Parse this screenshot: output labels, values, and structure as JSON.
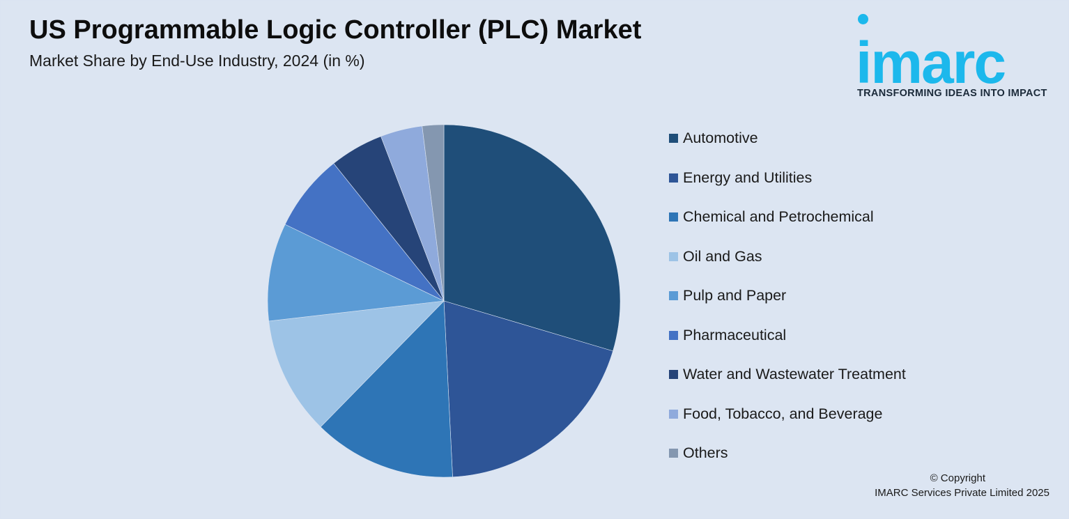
{
  "header": {
    "title": "US Programmable Logic Controller (PLC) Market",
    "subtitle": "Market Share by End-Use Industry, 2024 (in %)"
  },
  "logo": {
    "wordmark": "imarc",
    "tagline": "TRANSFORMING IDEAS INTO IMPACT",
    "color": "#1cb8ec"
  },
  "chart_data": {
    "type": "pie",
    "title": "US Programmable Logic Controller (PLC) Market",
    "subtitle": "Market Share by End-Use Industry, 2024 (in %)",
    "legend_position": "right",
    "categories": [
      "Automotive",
      "Energy and Utilities",
      "Chemical and Petrochemical",
      "Oil and Gas",
      "Pulp and Paper",
      "Pharmaceutical",
      "Water and Wastewater Treatment",
      "Food, Tobacco, and Beverage",
      "Others"
    ],
    "values": [
      30.0,
      19.9,
      13.3,
      11.0,
      9.1,
      7.2,
      5.0,
      3.9,
      2.0
    ],
    "colors": [
      "#1f4e79",
      "#2e5597",
      "#2e75b6",
      "#9dc3e6",
      "#5b9bd5",
      "#4472c4",
      "#264478",
      "#8faadc",
      "#8497b0"
    ]
  },
  "footer": {
    "copyright_line1": "© Copyright",
    "copyright_line2": "IMARC Services Private Limited 2025"
  }
}
